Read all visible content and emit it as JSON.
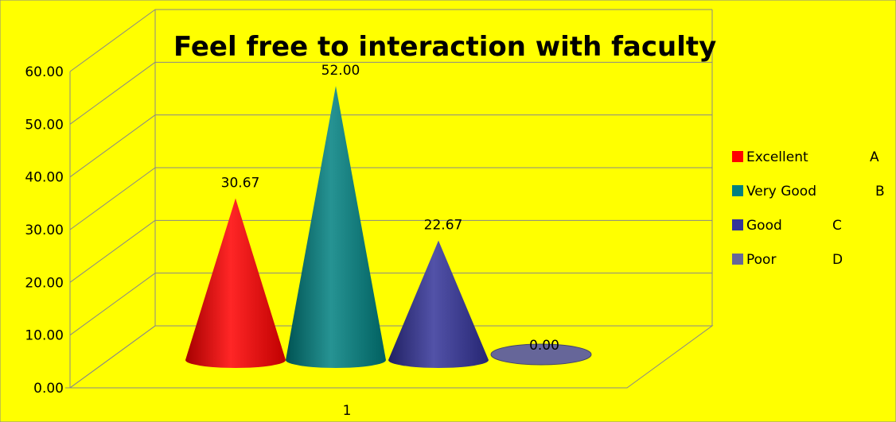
{
  "chart_data": {
    "type": "bar",
    "title": "Feel free to interaction with faculty",
    "categories": [
      "1"
    ],
    "series": [
      {
        "name": "Excellent",
        "letter": "A",
        "values": [
          30.67
        ],
        "label": "30.67",
        "color": "#ff0000"
      },
      {
        "name": "Very Good",
        "letter": "B",
        "values": [
          52.0
        ],
        "label": "52.00",
        "color": "#008080"
      },
      {
        "name": "Good",
        "letter": "C",
        "values": [
          22.67
        ],
        "label": "22.67",
        "color": "#333399"
      },
      {
        "name": "Poor",
        "letter": "D",
        "values": [
          0.0
        ],
        "label": "0.00",
        "color": "#666699"
      }
    ],
    "ylim": [
      0,
      60
    ],
    "yticks": [
      "0.00",
      "10.00",
      "20.00",
      "30.00",
      "40.00",
      "50.00",
      "60.00"
    ],
    "xlabel": "",
    "ylabel": "",
    "grid": true,
    "legend": "right",
    "shape": "3d-cone",
    "background_color": "#ffff00"
  }
}
